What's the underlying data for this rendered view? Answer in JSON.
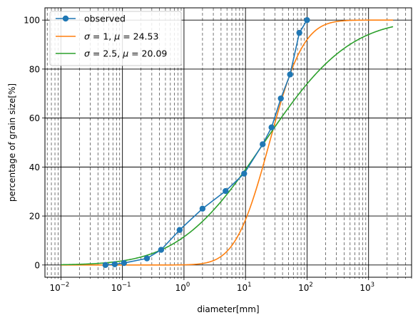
{
  "chart_data": {
    "type": "line",
    "title": "",
    "xlabel": "diameter[mm]",
    "ylabel": "percentage of grain size[%]",
    "xscale": "log",
    "xlim": [
      0.0055,
      5000
    ],
    "ylim": [
      -5,
      105
    ],
    "x_ticks": [
      {
        "value": 0.01,
        "base": "10",
        "exp": "−2"
      },
      {
        "value": 0.1,
        "base": "10",
        "exp": "−1"
      },
      {
        "value": 1,
        "base": "10",
        "exp": "0"
      },
      {
        "value": 10,
        "base": "10",
        "exp": "1"
      },
      {
        "value": 100,
        "base": "10",
        "exp": "2"
      },
      {
        "value": 1000,
        "base": "10",
        "exp": "3"
      }
    ],
    "y_ticks": [
      0,
      20,
      40,
      60,
      80,
      100
    ],
    "grid": {
      "major": "solid",
      "minor_x": "dashed"
    },
    "legend_position": "upper-left",
    "series": [
      {
        "name": "observed",
        "kind": "markers+line",
        "color": "#1f77b4",
        "x": [
          0.053,
          0.075,
          0.106,
          0.25,
          0.425,
          0.85,
          2.0,
          4.75,
          9.5,
          19.0,
          26.5,
          37.5,
          53.0,
          75.0,
          100.0
        ],
        "y": [
          0.0,
          0.3,
          0.8,
          2.7,
          6.2,
          14.3,
          23.0,
          30.2,
          37.3,
          49.3,
          56.2,
          68.0,
          77.8,
          94.8,
          100.0
        ]
      },
      {
        "name": "σ = 1, μ = 24.53",
        "kind": "lognormal-cdf",
        "color": "#ff7f0e",
        "sigma": 1,
        "mu": 24.53
      },
      {
        "name": "σ = 2.5, μ = 20.09",
        "kind": "lognormal-cdf",
        "color": "#2ca02c",
        "sigma": 2.5,
        "mu": 20.09
      }
    ],
    "legend": [
      {
        "sym": "σ",
        "sigma": "1",
        "mu_sym": "μ",
        "mu": "24.53"
      },
      {
        "sym": "σ",
        "sigma": "2.5",
        "mu_sym": "μ",
        "mu": "20.09"
      }
    ]
  }
}
